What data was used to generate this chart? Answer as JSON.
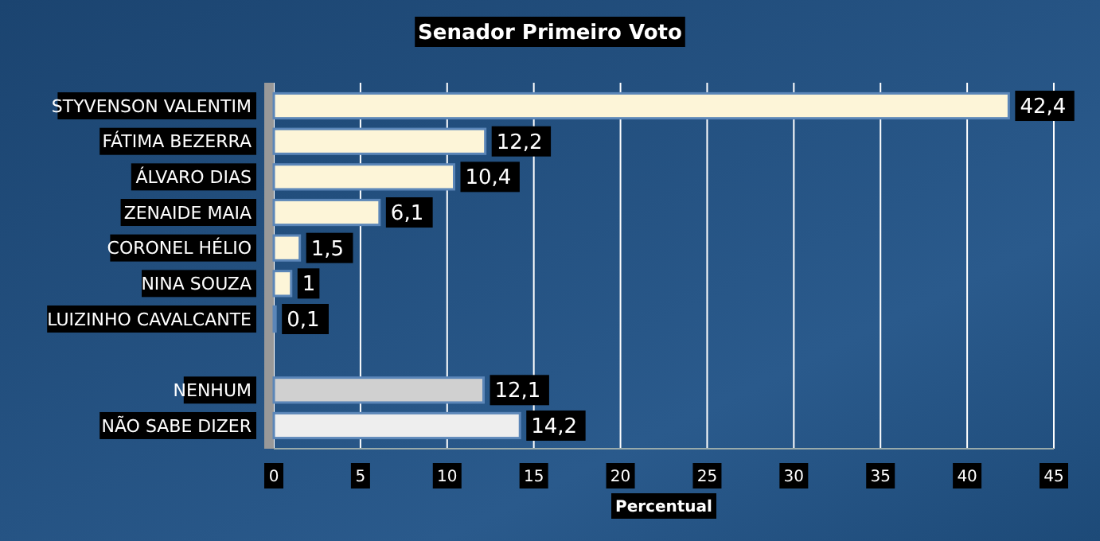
{
  "chart_data": {
    "type": "bar",
    "orientation": "horizontal",
    "title": "Senador Primeiro Voto",
    "xlabel": "Percentual",
    "categories": [
      "STYVENSON VALENTIM",
      "FÁTIMA BEZERRA",
      "ÁLVARO DIAS",
      "ZENAIDE MAIA",
      "CORONEL HÉLIO",
      "NINA SOUZA",
      "LUIZINHO CAVALCANTE",
      null,
      "NENHUM",
      "NÃO SABE DIZER"
    ],
    "values": [
      42.4,
      12.2,
      10.4,
      6.1,
      1.5,
      1,
      0.1,
      null,
      12.1,
      14.2
    ],
    "value_labels": [
      "42,4",
      "12,2",
      "10,4",
      "6,1",
      "1,5",
      "1",
      "0,1",
      null,
      "12,1",
      "14,2"
    ],
    "colors": [
      "#fdf5d8",
      "#fdf5d8",
      "#fdf5d8",
      "#fdf5d8",
      "#fdf5d8",
      "#fdf5d8",
      "#fdf5d8",
      null,
      "#d0d0d0",
      "#eeeeee"
    ],
    "xlim": [
      0,
      45
    ],
    "xticks": [
      0,
      5,
      10,
      15,
      20,
      25,
      30,
      35,
      40,
      45
    ],
    "grid": "x"
  }
}
